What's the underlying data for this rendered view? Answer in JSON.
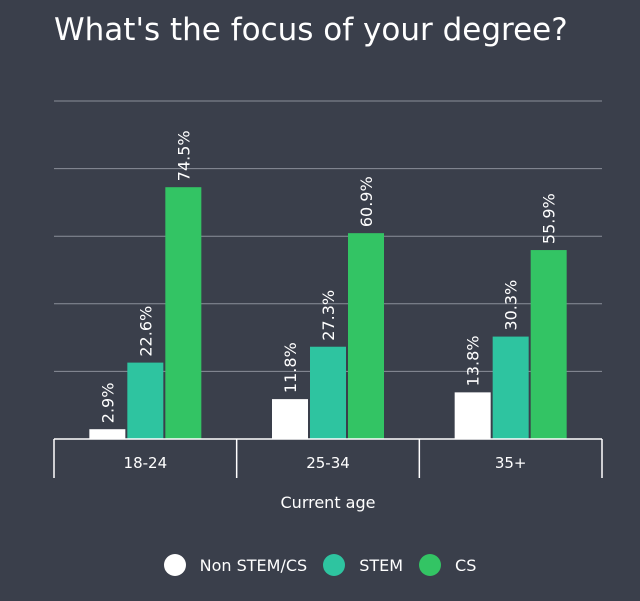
{
  "chart_data": {
    "type": "bar",
    "title": "What's the focus of your degree?",
    "xlabel": "Current age",
    "ylabel": "",
    "categories": [
      "18-24",
      "25-34",
      "35+"
    ],
    "series": [
      {
        "name": "Non STEM/CS",
        "color": "#ffffff",
        "values": [
          2.9,
          11.8,
          13.8
        ],
        "labels": [
          "2.9%",
          "11.8%",
          "13.8%"
        ]
      },
      {
        "name": "STEM",
        "color": "#2ec4a0",
        "values": [
          22.6,
          27.3,
          30.3
        ],
        "labels": [
          "22.6%",
          "27.3%",
          "30.3%"
        ]
      },
      {
        "name": "CS",
        "color": "#33c464",
        "values": [
          74.5,
          60.9,
          55.9
        ],
        "labels": [
          "74.5%",
          "60.9%",
          "55.9%"
        ]
      }
    ],
    "ylim": [
      0,
      100
    ],
    "grid": true,
    "legend": "bottom-center"
  }
}
